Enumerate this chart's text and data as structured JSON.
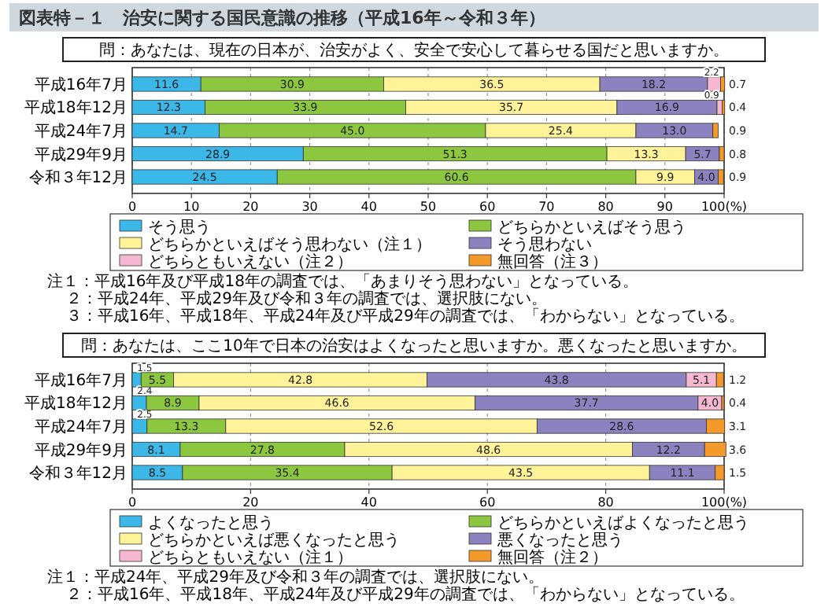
{
  "chart_data": [
    {
      "type": "bar",
      "orientation": "horizontal",
      "stacked": true,
      "title": "図表特－１　治安に関する国民意識の推移（平成16年～令和３年）",
      "subtitle": "問：あなたは、現在の日本が、治安がよく、安全で安心して暮らせる国だと思いますか。",
      "categories": [
        "平成16年7月",
        "平成18年12月",
        "平成24年7月",
        "平成29年9月",
        "令和３年12月"
      ],
      "series": [
        {
          "name": "そう思う",
          "color": "#3bb8e8",
          "values": [
            11.6,
            12.3,
            14.7,
            28.9,
            24.5
          ]
        },
        {
          "name": "どちらかといえばそう思う",
          "color": "#8dc63f",
          "values": [
            30.9,
            33.9,
            45.0,
            51.3,
            60.6
          ],
          "value_labels": [
            "30.9",
            "33.9",
            "45.0",
            "51.3",
            "60.6"
          ]
        },
        {
          "name": "どちらかといえばそう思わない（注１）",
          "color": "#fff39a",
          "values": [
            36.5,
            35.7,
            25.4,
            13.3,
            9.9
          ]
        },
        {
          "name": "そう思わない",
          "color": "#8c82c0",
          "values": [
            18.2,
            16.9,
            13.0,
            5.7,
            4.0
          ],
          "value_labels": [
            "18.2",
            "16.9",
            "13.0",
            "5.7",
            "4.0"
          ]
        },
        {
          "name": "どちらともいえない（注２）",
          "color": "#f5b8d0",
          "values": [
            2.2,
            0.9,
            null,
            null,
            null
          ]
        },
        {
          "name": "無回答（注３）",
          "color": "#f39a2b",
          "values": [
            0.7,
            0.4,
            0.9,
            0.8,
            0.9
          ]
        }
      ],
      "xlim": [
        0,
        100
      ],
      "xticks": [
        0,
        10,
        20,
        30,
        40,
        50,
        60,
        70,
        80,
        90,
        {
          "value": 100,
          "label": "100(%)"
        }
      ],
      "grid": "x",
      "legend": "bottom",
      "data_labels": true,
      "annotations": [
        "注１：平成16年及び平成18年の調査では、「あまりそう思わない」となっている。",
        "２：平成24年、平成29年及び令和３年の調査では、選択肢にない。",
        "３：平成16年、平成18年、平成24年及び平成29年の調査では、「わからない」となっている。"
      ]
    },
    {
      "type": "bar",
      "orientation": "horizontal",
      "stacked": true,
      "subtitle": "問：あなたは、ここ10年で日本の治安はよくなったと思いますか。悪くなったと思いますか。",
      "categories": [
        "平成16年7月",
        "平成18年12月",
        "平成24年7月",
        "平成29年9月",
        "令和３年12月"
      ],
      "series": [
        {
          "name": "よくなったと思う",
          "color": "#3bb8e8",
          "values": [
            1.5,
            2.4,
            2.5,
            8.1,
            8.5
          ]
        },
        {
          "name": "どちらかといえばよくなったと思う",
          "color": "#8dc63f",
          "values": [
            5.5,
            8.9,
            13.3,
            27.8,
            35.4
          ]
        },
        {
          "name": "どちらかといえば悪くなったと思う",
          "color": "#fff39a",
          "values": [
            42.8,
            46.6,
            52.6,
            48.6,
            43.5
          ]
        },
        {
          "name": "悪くなったと思う",
          "color": "#8c82c0",
          "values": [
            43.8,
            37.7,
            28.6,
            12.2,
            11.1
          ]
        },
        {
          "name": "どちらともいえない（注１）",
          "color": "#f5b8d0",
          "values": [
            5.1,
            4.0,
            null,
            null,
            null
          ],
          "value_labels": [
            "5.1",
            "4.0",
            null,
            null,
            null
          ]
        },
        {
          "name": "無回答（注２）",
          "color": "#f39a2b",
          "values": [
            1.2,
            0.4,
            3.1,
            3.6,
            1.5
          ]
        }
      ],
      "xlim": [
        0,
        100
      ],
      "xticks": [
        0,
        20,
        40,
        60,
        80,
        {
          "value": 100,
          "label": "100(%)"
        }
      ],
      "grid": "x",
      "legend": "bottom",
      "data_labels": true,
      "annotations": [
        "注１：平成24年、平成29年及び令和３年の調査では、選択肢にない。",
        "２：平成16年、平成18年、平成24年及び平成29年の調査では、「わからない」となっている。"
      ]
    }
  ]
}
